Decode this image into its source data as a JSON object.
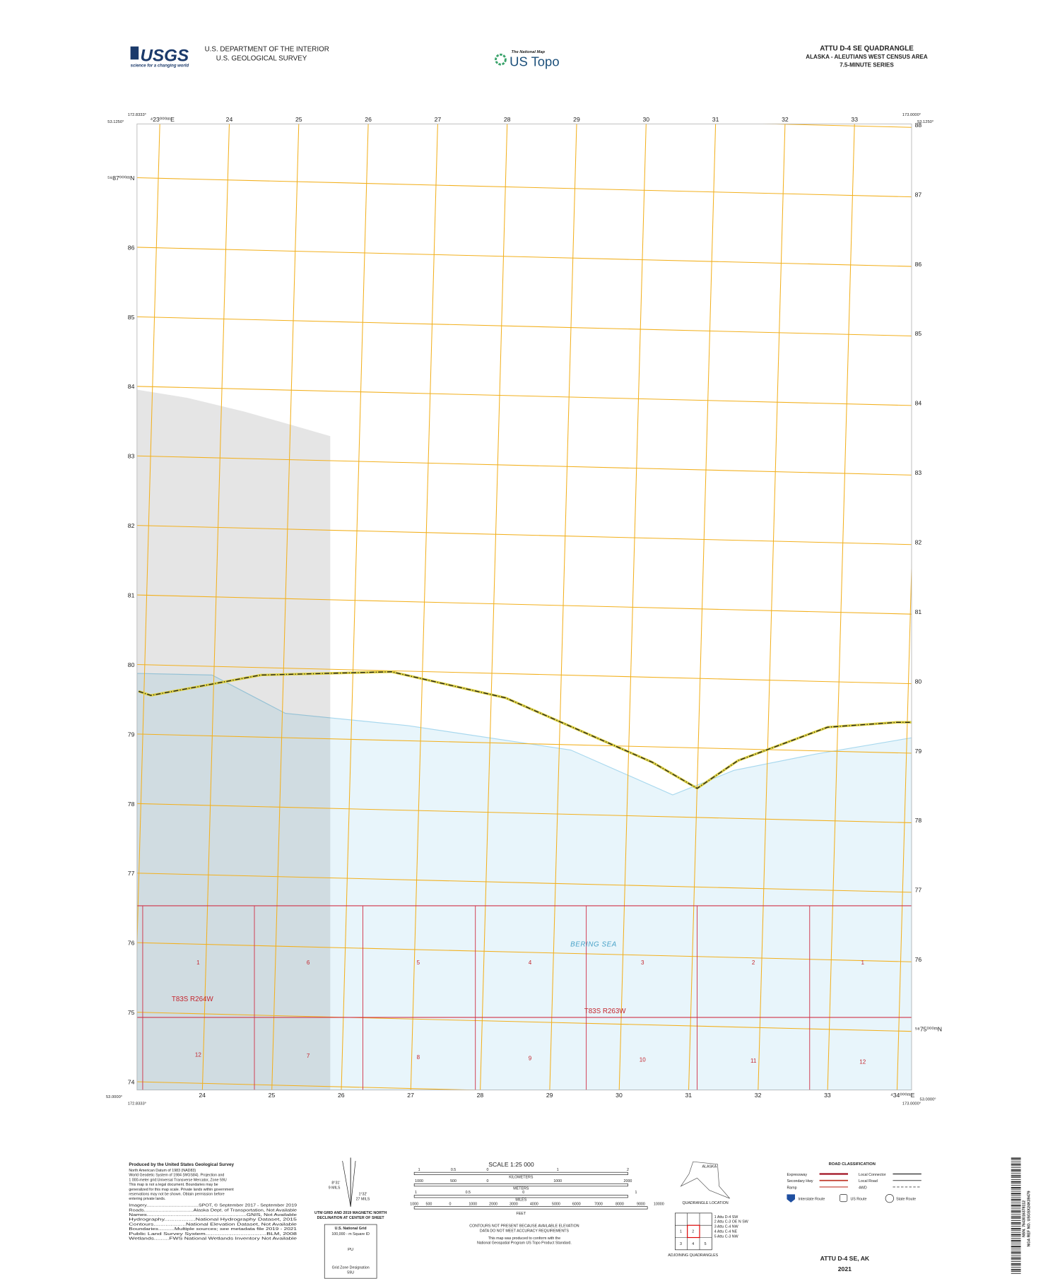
{
  "header": {
    "usgs": "USGS",
    "usgs_tagline": "science for a changing world",
    "department": "U.S. DEPARTMENT OF THE INTERIOR",
    "agency": "U.S. GEOLOGICAL SURVEY",
    "national_map": "The National Map",
    "us_topo": "US Topo",
    "quad_name": "ATTU D-4 SE QUADRANGLE",
    "area": "ALASKA - ALEUTIANS WEST CENSUS AREA",
    "series": "7.5-MINUTE SERIES"
  },
  "map": {
    "corners": {
      "top_left_lon": "172.8333°",
      "top_left_lat": "53.1250°",
      "top_right_lon": "173.0000°",
      "top_right_lat": "53.1250°",
      "bottom_left_lat": "53.0000°",
      "bottom_left_lon": "172.8333°",
      "bottom_right_lat": "53.0000°",
      "bottom_right_lon": "173.0000°"
    },
    "eastings_top": [
      "⁴23⁰⁰⁰ᵐE",
      "24",
      "25",
      "26",
      "27",
      "28",
      "29",
      "30",
      "31",
      "32",
      "33"
    ],
    "eastings_bottom": [
      "24",
      "25",
      "26",
      "27",
      "28",
      "29",
      "30",
      "31",
      "32",
      "33",
      "⁴34⁰⁰⁰ᵐE"
    ],
    "northings_left": [
      "⁵⁸87⁰⁰⁰ᵐN",
      "86",
      "85",
      "84",
      "83",
      "82",
      "81",
      "80",
      "79",
      "78",
      "77",
      "76",
      "75",
      "74"
    ],
    "northings_right": [
      "88",
      "87",
      "86",
      "85",
      "84",
      "83",
      "82",
      "81",
      "80",
      "79",
      "78",
      "77",
      "76",
      "⁵⁸75⁰⁰⁰ᵐN"
    ],
    "water_name": "BERING SEA",
    "townships": [
      "T83S R264W",
      "T83S R263W"
    ],
    "sections_north": [
      "1",
      "6",
      "5",
      "4",
      "3",
      "2",
      "1"
    ],
    "sections_south": [
      "12",
      "7",
      "8",
      "9",
      "10",
      "11",
      "12"
    ]
  },
  "footer": {
    "producer": "Produced by the United States Geological Survey",
    "notes": [
      "North American Datum of 1983 (NAD83)",
      "World Geodetic System of 1984 (WGS84). Projection and",
      "1 000-meter grid:Universal Transverse Mercator, Zone 59U",
      "This map is not a legal document. Boundaries may be",
      "generalized for this map scale. Private lands within government",
      "reservations may not be shown. Obtain permission before",
      "entering private lands."
    ],
    "sources": [
      "Imagery......................................SPOT, © September 2017 - September 2019",
      "Roads..................................Alaska Dept. of Transportation, Not Available",
      "Names...............................................................GNIS, Not Available",
      "Hydrography..................National Hydrography Dataset, 2015",
      "Contours...................National Elevation Dataset, Not Available",
      "Boundaries..........Multiple sources; see metadata file 2019 - 2021",
      "Public Land Survey System...................................BLM, 2008",
      "Wetlands.........FWS National Wetlands Inventory Not Available"
    ],
    "declination": {
      "grid_angle": "8°31'",
      "grid_mils": "9 MILS",
      "mag_angle": "1°32'",
      "mag_mils": "27 MILS",
      "caption1": "UTM GRID AND 2019 MAGNETIC NORTH",
      "caption2": "DECLINATION AT CENTER OF SHEET"
    },
    "usng": {
      "title": "U.S. National Grid",
      "subtitle": "100,000 - m Square ID",
      "square_id": "PU",
      "gzd_label": "Grid Zone Designation",
      "gzd": "59U"
    },
    "scale": {
      "title": "SCALE 1:25 000",
      "km_label": "KILOMETERS",
      "km_ticks": [
        "1",
        "0.5",
        "0",
        "1",
        "2"
      ],
      "m_label": "METERS",
      "m_ticks": [
        "1000",
        "500",
        "0",
        "1000",
        "2000"
      ],
      "mi_label": "MILES",
      "mi_ticks": [
        "1",
        "0.5",
        "0",
        "1"
      ],
      "ft_label": "FEET",
      "ft_ticks": [
        "1000",
        "500",
        "0",
        "1000",
        "2000",
        "3000",
        "4000",
        "5000",
        "6000",
        "7000",
        "8000",
        "9000",
        "10000"
      ]
    },
    "contour_note": [
      "CONTOURS NOT PRESENT BECAUSE AVAILABLE ELEVATION",
      "DATA DO NOT MEET ACCURACY REQUIREMENTS"
    ],
    "standard_note": [
      "This map was produced to conform with the",
      "National Geospatial Program US Topo Product Standard."
    ],
    "location": {
      "state": "ALASKA",
      "caption": "QUADRANGLE LOCATION"
    },
    "adjoining": {
      "cells": [
        "1",
        "2",
        "3",
        "4",
        "5"
      ],
      "list": [
        "1 Attu D-4 SW",
        "2 Attu C-3 OE N SW",
        "3 Attu C-4 NW",
        "4 Attu C-4 NE",
        "5 Attu C-3 NW"
      ],
      "caption": "ADJOINING QUADRANGLES"
    },
    "roads": {
      "title": "ROAD CLASSIFICATION",
      "expressway": "Expressway",
      "secondary": "Secondary Hwy",
      "ramp": "Ramp",
      "local_connector": "Local Connector",
      "local_road": "Local Road",
      "fourwd": "4WD",
      "interstate": "Interstate Route",
      "us_route": "US Route",
      "state_route": "State Route"
    },
    "sheet_name": "ATTU D-4 SE,  AK",
    "year": "2021",
    "barcode_text": [
      "NSN. 7643016378112",
      "NGA REF NO. USGSX24K39479"
    ]
  }
}
